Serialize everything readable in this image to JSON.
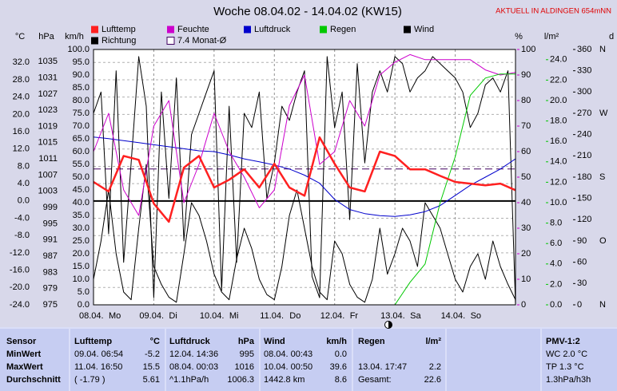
{
  "chart_data": {
    "type": "line",
    "title": "Woche 08.04.02 - 14.04.02 (KW15)",
    "notice": "AKTUELL IN ALDINGEN 654mNN",
    "xlim": [
      0,
      7
    ],
    "xticks": [
      0,
      1,
      2,
      3,
      4,
      5,
      6
    ],
    "categories": [
      "08.04.",
      "09.04.",
      "10.04.",
      "11.04.",
      "12.04.",
      "13.04.",
      "14.04."
    ],
    "weekdays": [
      "Mo",
      "Di",
      "Mi",
      "Do",
      "Fr",
      "Sa",
      "So"
    ],
    "grid": true,
    "axes": {
      "temp": {
        "label": "°C",
        "color": "#ff0000",
        "ylim": [
          -24,
          35
        ],
        "ticks": [
          {
            "value": 32,
            "label": "32.0"
          },
          {
            "value": 28,
            "label": "28.0"
          },
          {
            "value": 24,
            "label": "24.0"
          },
          {
            "value": 20,
            "label": "20.0"
          },
          {
            "value": 16,
            "label": "16.0"
          },
          {
            "value": 12,
            "label": "12.0"
          },
          {
            "value": 8,
            "label": "8.0"
          },
          {
            "value": 4,
            "label": "4.0"
          },
          {
            "value": 0,
            "label": "0.0"
          },
          {
            "value": -4,
            "label": "-4.0"
          },
          {
            "value": -8,
            "label": "-8.0"
          },
          {
            "value": -12,
            "label": "-12.0"
          },
          {
            "value": -16,
            "label": "-16.0"
          },
          {
            "value": -20,
            "label": "-20.0"
          },
          {
            "value": -24,
            "label": "-24.0"
          }
        ]
      },
      "pres": {
        "label": "hPa",
        "color": "#0000c0",
        "ylim": [
          975,
          1038
        ],
        "ticks": [
          1035,
          1031,
          1027,
          1023,
          1019,
          1015,
          1011,
          1007,
          1003,
          999,
          995,
          991,
          987,
          983,
          979,
          975
        ]
      },
      "wind": {
        "label": "km/h",
        "color": "#000000",
        "ylim": [
          0,
          100
        ],
        "ticks": [
          {
            "value": 100,
            "label": "100.0"
          },
          {
            "value": 95,
            "label": "95.0"
          },
          {
            "value": 90,
            "label": "90.0"
          },
          {
            "value": 85,
            "label": "85.0"
          },
          {
            "value": 80,
            "label": "80.0"
          },
          {
            "value": 75,
            "label": "75.0"
          },
          {
            "value": 70,
            "label": "70.0"
          },
          {
            "value": 65,
            "label": "65.0"
          },
          {
            "value": 60,
            "label": "60.0"
          },
          {
            "value": 55,
            "label": "55.0"
          },
          {
            "value": 50,
            "label": "50.0"
          },
          {
            "value": 45,
            "label": "45.0"
          },
          {
            "value": 40,
            "label": "40.0"
          },
          {
            "value": 35,
            "label": "35.0"
          },
          {
            "value": 30,
            "label": "30.0"
          },
          {
            "value": 25,
            "label": "25.0"
          },
          {
            "value": 20,
            "label": "20.0"
          },
          {
            "value": 15,
            "label": "15.0"
          },
          {
            "value": 10,
            "label": "10.0"
          },
          {
            "value": 5,
            "label": "5.0"
          },
          {
            "value": 0,
            "label": "0.0"
          }
        ]
      },
      "hum": {
        "label": "%",
        "color": "#cc00cc",
        "ylim": [
          0,
          100
        ],
        "ticks": [
          100,
          90,
          80,
          70,
          60,
          50,
          40,
          30,
          20,
          10,
          0
        ]
      },
      "rain": {
        "label": "l/m²",
        "color": "#00c800",
        "ylim": [
          0,
          25
        ],
        "ticks": [
          {
            "value": 24,
            "label": "24.0"
          },
          {
            "value": 22,
            "label": "22.0"
          },
          {
            "value": 20,
            "label": "20.0"
          },
          {
            "value": 18,
            "label": "18.0"
          },
          {
            "value": 16,
            "label": "16.0"
          },
          {
            "value": 14,
            "label": "14.0"
          },
          {
            "value": 12,
            "label": "12.0"
          },
          {
            "value": 10,
            "label": "10.0"
          },
          {
            "value": 8,
            "label": "8.0"
          },
          {
            "value": 6,
            "label": "6.0"
          },
          {
            "value": 4,
            "label": "4.0"
          },
          {
            "value": 2,
            "label": "2.0"
          },
          {
            "value": 0,
            "label": "0.0"
          }
        ]
      },
      "dir": {
        "label": "d",
        "color": "#000000",
        "ylim": [
          0,
          360
        ],
        "ticks": [
          360,
          330,
          300,
          270,
          240,
          210,
          180,
          150,
          120,
          90,
          60,
          30,
          0
        ],
        "letters": [
          {
            "value": 360,
            "label": "N"
          },
          {
            "value": 270,
            "label": "W"
          },
          {
            "value": 180,
            "label": "S"
          },
          {
            "value": 90,
            "label": "O"
          },
          {
            "value": 0,
            "label": "N"
          }
        ]
      }
    },
    "x": [
      0,
      0.25,
      0.5,
      0.75,
      1,
      1.25,
      1.5,
      1.75,
      2,
      2.25,
      2.5,
      2.75,
      3,
      3.25,
      3.5,
      3.75,
      4,
      4.25,
      4.5,
      4.75,
      5,
      5.25,
      5.5,
      5.75,
      6,
      6.25,
      6.5,
      6.75,
      7
    ],
    "series": [
      {
        "name": "Lufttemp",
        "color": "#ff2020",
        "axis": "temp",
        "values": [
          4.4,
          2.2,
          10.4,
          9.5,
          -0.6,
          -4.8,
          7.7,
          10.4,
          3.1,
          4.9,
          7.3,
          3.1,
          8.6,
          3.1,
          1.2,
          14.7,
          8.6,
          3.1,
          2.2,
          11.4,
          10.4,
          7.3,
          7.3,
          5.8,
          4.4,
          4.0,
          3.6,
          4.0,
          2.5
        ]
      },
      {
        "name": "Feuchte",
        "color": "#cc00cc",
        "axis": "hum",
        "values": [
          60,
          75,
          45,
          35,
          70,
          80,
          40,
          55,
          75,
          60,
          50,
          38,
          45,
          78,
          90,
          55,
          60,
          80,
          70,
          90,
          95,
          98,
          96,
          96,
          96,
          96,
          92,
          90,
          91
        ]
      },
      {
        "name": "Luftdruck",
        "color": "#0000cc",
        "axis": "pres",
        "values": [
          1016.4,
          1016,
          1015.5,
          1015,
          1014.5,
          1014,
          1013.5,
          1013,
          1012.8,
          1012,
          1011,
          1010.3,
          1009.5,
          1008.5,
          1007,
          1005,
          1001,
          998.5,
          997.5,
          997,
          996.8,
          997.2,
          998,
          999.5,
          1002,
          1004.5,
          1006.5,
          1008.5,
          1011
        ]
      },
      {
        "name": "Regen",
        "color": "#00c800",
        "axis": "rain",
        "values": [
          null,
          null,
          null,
          null,
          null,
          null,
          null,
          null,
          null,
          null,
          null,
          null,
          null,
          null,
          null,
          null,
          null,
          null,
          null,
          null,
          0,
          2.2,
          4.0,
          10,
          14.5,
          20.5,
          22.2,
          22.6,
          22.6
        ]
      },
      {
        "name": "Wind",
        "color": "#000000",
        "axis": "wind",
        "x": [
          0,
          0.125,
          0.25,
          0.375,
          0.5,
          0.625,
          0.75,
          0.875,
          1,
          1.125,
          1.25,
          1.375,
          1.5,
          1.625,
          1.75,
          1.875,
          2,
          2.125,
          2.25,
          2.375,
          2.5,
          2.625,
          2.75,
          2.875,
          3,
          3.125,
          3.25,
          3.375,
          3.5,
          3.625,
          3.75,
          3.875,
          4,
          4.125,
          4.25,
          4.375,
          4.5,
          4.625,
          4.75,
          4.875,
          5,
          5.125,
          5.25,
          5.375,
          5.5,
          5.625,
          5.75,
          5.875,
          6,
          6.125,
          6.25,
          6.375,
          6.5,
          6.625,
          6.75,
          6.875,
          7
        ],
        "values": [
          10,
          25,
          45,
          20,
          5,
          2,
          30,
          55,
          15,
          8,
          3,
          1,
          20,
          40,
          35,
          25,
          12,
          5,
          2,
          18,
          30,
          22,
          10,
          4,
          2,
          15,
          35,
          45,
          30,
          15,
          5,
          2,
          25,
          20,
          8,
          3,
          1,
          10,
          30,
          12,
          20,
          30,
          25,
          15,
          40,
          35,
          30,
          20,
          10,
          5,
          15,
          20,
          10,
          25,
          15,
          8,
          2
        ]
      },
      {
        "name": "Richtung",
        "color": "#000000",
        "axis": "dir",
        "x": [
          0,
          0.125,
          0.25,
          0.375,
          0.5,
          0.625,
          0.75,
          0.875,
          1,
          1.125,
          1.25,
          1.375,
          1.5,
          1.625,
          1.75,
          1.875,
          2,
          2.125,
          2.25,
          2.375,
          2.5,
          2.625,
          2.75,
          2.875,
          3,
          3.125,
          3.25,
          3.375,
          3.5,
          3.625,
          3.75,
          3.875,
          4,
          4.125,
          4.25,
          4.375,
          4.5,
          4.625,
          4.75,
          4.875,
          5,
          5.125,
          5.25,
          5.375,
          5.5,
          5.625,
          5.75,
          5.875,
          6,
          6.125,
          6.25,
          6.375,
          6.5,
          6.625,
          6.75,
          6.875,
          7
        ],
        "values": [
          270,
          300,
          100,
          330,
          60,
          200,
          350,
          280,
          10,
          300,
          150,
          320,
          90,
          240,
          270,
          300,
          330,
          20,
          280,
          60,
          270,
          250,
          300,
          150,
          200,
          280,
          260,
          300,
          330,
          40,
          10,
          350,
          250,
          300,
          120,
          340,
          200,
          300,
          330,
          300,
          350,
          340,
          300,
          320,
          330,
          350,
          340,
          330,
          320,
          300,
          250,
          270,
          310,
          320,
          300,
          330,
          0
        ]
      }
    ],
    "mean": {
      "name": "7.4 Monat-Ø",
      "value": 7.4,
      "axis": "temp",
      "color": "#400060"
    }
  },
  "table": {
    "header": [
      "Sensor",
      "Lufttemp",
      "°C",
      "Luftdruck",
      "hPa",
      "Wind",
      "km/h",
      "Regen",
      "l/m²",
      "PMV-1:2"
    ],
    "rows": [
      [
        "MinWert",
        "09.04.  06:54",
        "-5.2",
        "12.04.  14:36",
        "995",
        "08.04.  00:43",
        "0.0",
        null,
        null,
        "WC 2.0 °C"
      ],
      [
        "MaxWert",
        "11.04.  16:50",
        "15.5",
        "08.04.  00:03",
        "1016",
        "10.04.  00:50",
        "39.6",
        "13.04.   17:47",
        "2.2",
        "TP 1.3 °C"
      ],
      [
        "Durchschnitt",
        "( -1.79 )",
        "5.61",
        "^1.1hPa/h",
        "1006.3",
        "1442.8 km",
        "8.6",
        "Gesamt:",
        "22.6",
        "1.3hPa/h3h"
      ]
    ]
  }
}
